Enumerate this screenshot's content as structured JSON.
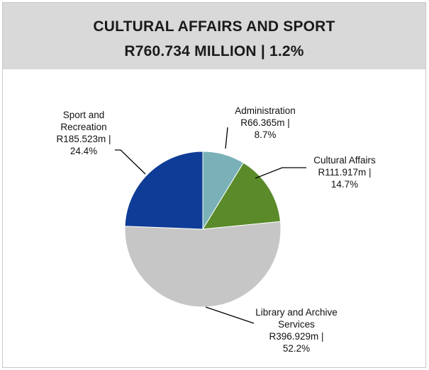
{
  "header": {
    "title_line1": "CULTURAL AFFAIRS AND SPORT",
    "title_line2": "R760.734 MILLION  |  1.2%"
  },
  "chart_data": {
    "type": "pie",
    "total": "R760.734 MILLION",
    "slices": [
      {
        "label": "Administration",
        "value": 66.365,
        "value_text": "R66.365m |",
        "percent": 8.7,
        "percent_text": "8.7%",
        "color": "#7ab1b9"
      },
      {
        "label": "Cultural Affairs",
        "value": 111.917,
        "value_text": "R111.917m |",
        "percent": 14.7,
        "percent_text": "14.7%",
        "color": "#5a8a2a"
      },
      {
        "label": "Library and Archive Services",
        "value": 396.929,
        "value_text": "R396.929m |",
        "percent": 52.2,
        "percent_text": "52.2%",
        "color": "#c6c6c6"
      },
      {
        "label": "Sport and Recreation",
        "value": 185.523,
        "value_text": "R185.523m |",
        "percent": 24.4,
        "percent_text": "24.4%",
        "color": "#0f3c96"
      }
    ],
    "label_lines": [
      [
        "Administration",
        "R66.365m |",
        "8.7%"
      ],
      [
        "Cultural Affairs",
        "R111.917m |",
        "14.7%"
      ],
      [
        "Library and Archive",
        "Services",
        "R396.929m |",
        "52.2%"
      ],
      [
        "Sport and",
        "Recreation",
        "R185.523m |",
        "24.4%"
      ]
    ]
  }
}
